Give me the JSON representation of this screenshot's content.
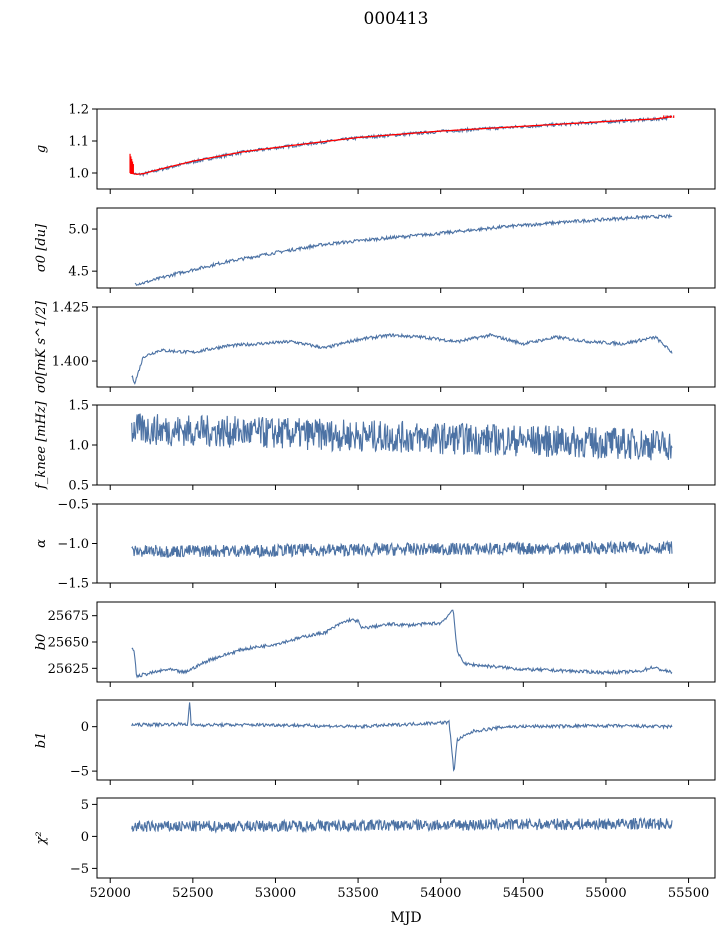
{
  "figure": {
    "title": "000413",
    "xlabel": "MJD"
  },
  "colors": {
    "series": "#4c72a4",
    "fit": "#ff0000",
    "frame": "#000000"
  },
  "x_ticks": [
    52000,
    52500,
    53000,
    53500,
    54000,
    54500,
    55000,
    55500
  ],
  "x_range": [
    51920,
    55660
  ],
  "chart_data": [
    {
      "type": "line",
      "ylabel": "g",
      "ylim": [
        0.95,
        1.2
      ],
      "yticks": [
        1.0,
        1.1,
        1.2
      ],
      "yticklabels": [
        "1.0",
        "1.1",
        "1.2"
      ],
      "series": [
        {
          "x": [
            52120,
            52140,
            52160,
            52200,
            52300,
            52500,
            52800,
            53100,
            53500,
            54000,
            54500,
            55000,
            55300,
            55400
          ],
          "y": [
            1.01,
            1.0,
            0.995,
            0.997,
            1.01,
            1.035,
            1.065,
            1.085,
            1.11,
            1.13,
            1.145,
            1.16,
            1.168,
            1.175
          ]
        }
      ],
      "fit": {
        "x": [
          52120,
          52140,
          52160,
          52200,
          52300,
          52500,
          52800,
          53100,
          53500,
          54000,
          54500,
          55000,
          55300,
          55400
        ],
        "y": [
          1.0,
          0.998,
          0.996,
          0.998,
          1.012,
          1.037,
          1.066,
          1.086,
          1.111,
          1.131,
          1.146,
          1.161,
          1.169,
          1.176
        ]
      }
    },
    {
      "type": "line",
      "ylabel": "σ0 [du]",
      "ylim": [
        4.3,
        5.25
      ],
      "yticks": [
        4.5,
        5.0
      ],
      "yticklabels": [
        "4.5",
        "5.0"
      ],
      "series": [
        {
          "x": [
            52150,
            52200,
            52400,
            52700,
            53000,
            53300,
            53600,
            54000,
            54400,
            54800,
            55200,
            55400
          ],
          "y": [
            4.35,
            4.36,
            4.47,
            4.61,
            4.72,
            4.82,
            4.88,
            4.95,
            5.03,
            5.09,
            5.14,
            5.15
          ]
        }
      ]
    },
    {
      "type": "line",
      "ylabel": "σ0[mK s^1/2]",
      "ylim": [
        1.388,
        1.425
      ],
      "yticks": [
        1.4,
        1.425
      ],
      "yticklabels": [
        "1.400",
        "1.425"
      ],
      "series": [
        {
          "x": [
            52130,
            52150,
            52200,
            52300,
            52500,
            52700,
            52900,
            53100,
            53300,
            53500,
            53700,
            53900,
            54100,
            54300,
            54500,
            54700,
            54900,
            55100,
            55300,
            55400
          ],
          "y": [
            1.393,
            1.39,
            1.402,
            1.405,
            1.404,
            1.407,
            1.408,
            1.409,
            1.406,
            1.41,
            1.412,
            1.411,
            1.409,
            1.412,
            1.408,
            1.411,
            1.409,
            1.408,
            1.411,
            1.404
          ]
        }
      ]
    },
    {
      "type": "line",
      "ylabel": "f_knee [mHz]",
      "ylim": [
        0.5,
        1.5
      ],
      "yticks": [
        0.5,
        1.0,
        1.5
      ],
      "yticklabels": [
        "0.5",
        "1.0",
        "1.5"
      ],
      "series": [
        {
          "x": [
            52130,
            55400
          ],
          "y": [
            1.2,
            1.0
          ],
          "noise": 0.2
        }
      ]
    },
    {
      "type": "line",
      "ylabel": "α",
      "ylim": [
        -1.5,
        -0.5
      ],
      "yticks": [
        -1.5,
        -1.0,
        -0.5
      ],
      "yticklabels": [
        "−1.5",
        "−1.0",
        "−0.5"
      ],
      "series": [
        {
          "x": [
            52130,
            55400
          ],
          "y": [
            -1.1,
            -1.05
          ],
          "noise": 0.08
        }
      ]
    },
    {
      "type": "line",
      "ylabel": "b0",
      "ylim": [
        25612,
        25688
      ],
      "yticks": [
        25625,
        25650,
        25675
      ],
      "yticklabels": [
        "25625",
        "25650",
        "25675"
      ],
      "series": [
        {
          "x": [
            52130,
            52145,
            52160,
            52200,
            52350,
            52450,
            52600,
            52800,
            53000,
            53200,
            53300,
            53400,
            53450,
            53500,
            53520,
            53700,
            53800,
            54000,
            54050,
            54075,
            54100,
            54150,
            54300,
            54500,
            54700,
            55000,
            55200,
            55280,
            55400
          ],
          "y": [
            25643,
            25642,
            25617,
            25619,
            25624,
            25621,
            25633,
            25643,
            25648,
            25656,
            25659,
            25668,
            25671,
            25670,
            25663,
            25667,
            25666,
            25668,
            25676,
            25682,
            25640,
            25629,
            25627,
            25624,
            25623,
            25621,
            25622,
            25626,
            25621
          ]
        }
      ]
    },
    {
      "type": "line",
      "ylabel": "b1",
      "ylim": [
        -6,
        3
      ],
      "yticks": [
        -5,
        0
      ],
      "yticklabels": [
        "−5",
        "0"
      ],
      "series": [
        {
          "x": [
            52130,
            52470,
            52480,
            52490,
            53000,
            53500,
            54050,
            54070,
            54080,
            54100,
            54200,
            54400,
            55000,
            55400
          ],
          "y": [
            0.2,
            0.3,
            2.8,
            0.2,
            0.2,
            0.0,
            0.5,
            -3.0,
            -5.2,
            -1.5,
            -0.5,
            0.0,
            0.1,
            0.0
          ]
        }
      ]
    },
    {
      "type": "line",
      "ylabel": "χ²",
      "ylim": [
        -6.5,
        6
      ],
      "yticks": [
        -5,
        0,
        5
      ],
      "yticklabels": [
        "−5",
        "0",
        "5"
      ],
      "series": [
        {
          "x": [
            52130,
            55400
          ],
          "y": [
            1.5,
            2.0
          ],
          "noise": 0.9
        }
      ]
    }
  ]
}
